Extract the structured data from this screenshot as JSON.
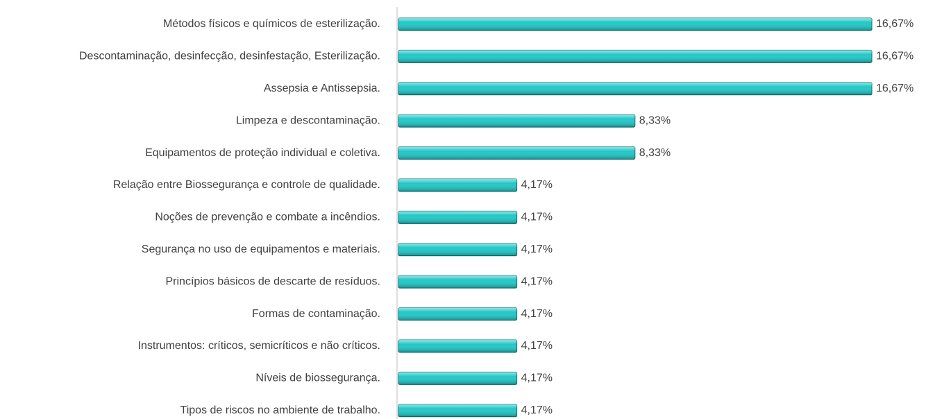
{
  "chart_data": {
    "type": "barh",
    "categories": [
      "Métodos físicos e químicos de esterilização.",
      "Descontaminação, desinfecção, desinfestação, Esterilização.",
      "Assepsia e Antissepsia.",
      "Limpeza e descontaminação.",
      "Equipamentos de proteção individual e coletiva.",
      "Relação entre Biossegurança e controle de qualidade.",
      "Noções de prevenção e combate a incêndios.",
      "Segurança no uso de equipamentos e materiais.",
      "Princípios básicos de descarte de resíduos.",
      "Formas de contaminação.",
      "Instrumentos: críticos, semicríticos e não críticos.",
      "Níveis de biossegurança.",
      "Tipos de riscos no ambiente de trabalho."
    ],
    "values": [
      16.67,
      16.67,
      16.67,
      8.33,
      8.33,
      4.17,
      4.17,
      4.17,
      4.17,
      4.17,
      4.17,
      4.17,
      4.17
    ],
    "value_labels": [
      "16,67%",
      "16,67%",
      "16,67%",
      "8,33%",
      "8,33%",
      "4,17%",
      "4,17%",
      "4,17%",
      "4,17%",
      "4,17%",
      "4,17%",
      "4,17%",
      "4,17%"
    ],
    "color": "#20c8c8"
  }
}
